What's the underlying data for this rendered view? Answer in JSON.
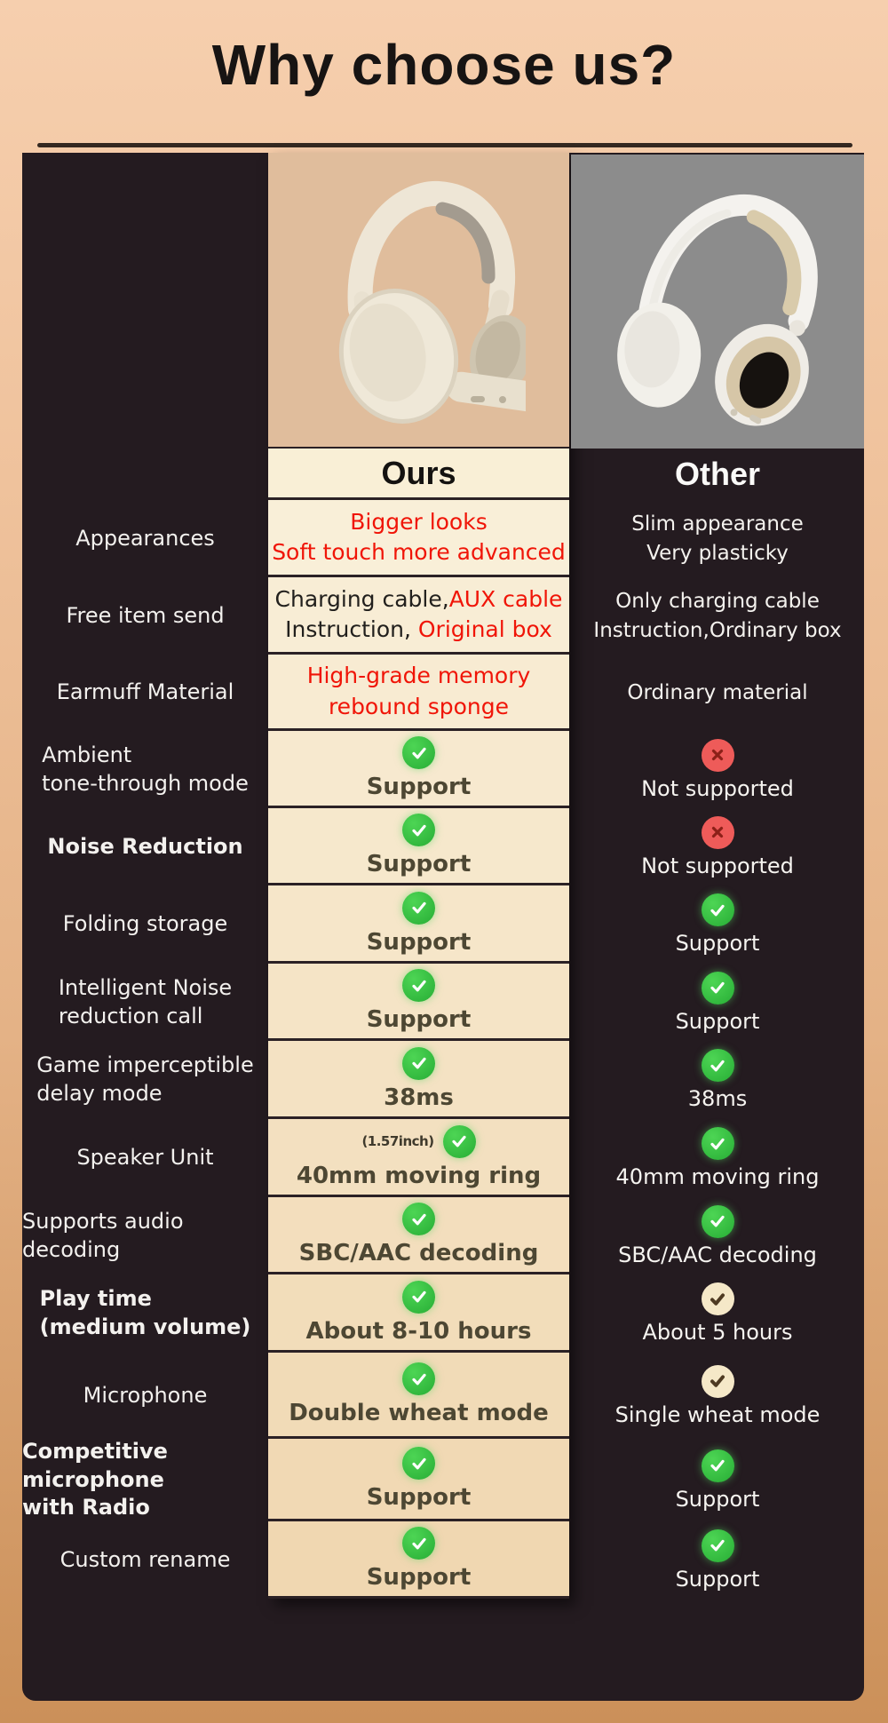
{
  "title": "Why choose us?",
  "header": {
    "ours": "Ours",
    "other": "Other"
  },
  "images": {
    "ours": "cream-over-ear-headphones",
    "other": "white-over-ear-headphones"
  },
  "colors": {
    "page_top": "#f6cfae",
    "page_bottom": "#cb9059",
    "table_bg": "#241b20",
    "ours_panel_cream": "#f9efd6",
    "ours_image_bg": "#e0bd9c",
    "other_image_bg": "#8c8c8c",
    "highlight_red": "#f01508",
    "check_green": "#2fb43d",
    "x_red": "#ee5b59",
    "check_cream": "#f5e8c8"
  },
  "rows": [
    {
      "label_lines": [
        "Appearances"
      ],
      "label_bold": false,
      "ours": {
        "kind": "styled",
        "lines": [
          [
            {
              "t": "Bigger looks",
              "red": true
            }
          ],
          [
            {
              "t": "Soft touch more advanced",
              "red": true
            }
          ]
        ]
      },
      "other": {
        "kind": "plain",
        "lines": [
          "Slim appearance",
          "Very plasticky"
        ]
      }
    },
    {
      "label_lines": [
        "Free item send"
      ],
      "label_bold": false,
      "ours": {
        "kind": "styled",
        "lines": [
          [
            {
              "t": "Charging cable,",
              "red": false
            },
            {
              "t": "AUX cable",
              "red": true
            }
          ],
          [
            {
              "t": "Instruction, ",
              "red": false
            },
            {
              "t": "Original box",
              "red": true
            }
          ]
        ]
      },
      "other": {
        "kind": "plain",
        "lines": [
          "Only charging cable",
          "Instruction,Ordinary box"
        ]
      }
    },
    {
      "label_lines": [
        "Earmuff Material"
      ],
      "label_bold": false,
      "ours": {
        "kind": "styled",
        "lines": [
          [
            {
              "t": "High-grade memory",
              "red": true
            }
          ],
          [
            {
              "t": "rebound sponge",
              "red": true
            }
          ]
        ]
      },
      "other": {
        "kind": "plain",
        "lines": [
          "Ordinary material"
        ]
      }
    },
    {
      "label_lines": [
        "Ambient",
        "tone-through mode"
      ],
      "label_bold": false,
      "ours": {
        "kind": "icon",
        "icon": "check-green",
        "text": "Support"
      },
      "other": {
        "kind": "icon",
        "icon": "x-red",
        "text": "Not supported"
      }
    },
    {
      "label_lines": [
        "Noise Reduction"
      ],
      "label_bold": true,
      "ours": {
        "kind": "icon",
        "icon": "check-green",
        "text": "Support"
      },
      "other": {
        "kind": "icon",
        "icon": "x-red",
        "text": "Not supported"
      }
    },
    {
      "label_lines": [
        "Folding storage"
      ],
      "label_bold": false,
      "ours": {
        "kind": "icon",
        "icon": "check-green",
        "text": "Support"
      },
      "other": {
        "kind": "icon",
        "icon": "check-green",
        "text": "Support"
      }
    },
    {
      "label_lines": [
        "Intelligent Noise",
        "reduction call"
      ],
      "label_bold": false,
      "ours": {
        "kind": "icon",
        "icon": "check-green",
        "text": "Support"
      },
      "other": {
        "kind": "icon",
        "icon": "check-green",
        "text": "Support"
      }
    },
    {
      "label_lines": [
        "Game imperceptible",
        "delay mode"
      ],
      "label_bold": false,
      "ours": {
        "kind": "icon",
        "icon": "check-green",
        "text": "38ms"
      },
      "other": {
        "kind": "icon",
        "icon": "check-green",
        "text": "38ms"
      }
    },
    {
      "label_lines": [
        "Speaker Unit"
      ],
      "label_bold": false,
      "ours": {
        "kind": "icon",
        "icon": "check-green",
        "note": "(1.57inch)",
        "text": "40mm moving ring"
      },
      "other": {
        "kind": "icon",
        "icon": "check-green",
        "text": "40mm moving ring"
      }
    },
    {
      "label_lines": [
        "Supports audio decoding"
      ],
      "label_bold": false,
      "ours": {
        "kind": "icon",
        "icon": "check-green",
        "text": "SBC/AAC decoding"
      },
      "other": {
        "kind": "icon",
        "icon": "check-green",
        "text": "SBC/AAC decoding"
      }
    },
    {
      "label_lines": [
        "Play time",
        "(medium volume)"
      ],
      "label_bold": true,
      "ours": {
        "kind": "icon",
        "icon": "check-green",
        "text": "About 8-10 hours"
      },
      "other": {
        "kind": "icon",
        "icon": "check-cream",
        "text": "About 5 hours"
      }
    },
    {
      "label_lines": [
        "Microphone"
      ],
      "label_bold": false,
      "ours": {
        "kind": "icon",
        "icon": "check-green",
        "text": "Double wheat mode"
      },
      "other": {
        "kind": "icon",
        "icon": "check-cream",
        "text": "Single wheat mode"
      }
    },
    {
      "label_lines": [
        "Competitive microphone",
        "with Radio"
      ],
      "label_bold": true,
      "ours": {
        "kind": "icon",
        "icon": "check-green",
        "text": "Support"
      },
      "other": {
        "kind": "icon",
        "icon": "check-green",
        "text": "Support"
      }
    },
    {
      "label_lines": [
        "Custom rename"
      ],
      "label_bold": false,
      "ours": {
        "kind": "icon",
        "icon": "check-green",
        "text": "Support"
      },
      "other": {
        "kind": "icon",
        "icon": "check-green",
        "text": "Support"
      }
    }
  ]
}
